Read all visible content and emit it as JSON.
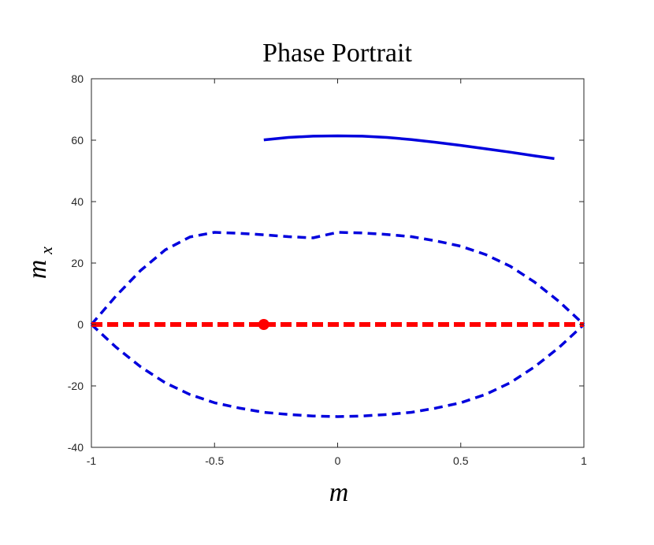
{
  "chart_data": {
    "type": "line",
    "title": "Phase Portrait",
    "xlabel": "m",
    "ylabel": {
      "base": "m",
      "subscript": "x"
    },
    "xlim": [
      -1,
      1
    ],
    "ylim": [
      -40,
      80
    ],
    "x_ticks": [
      -1,
      -0.5,
      0,
      0.5,
      1
    ],
    "x_tick_labels": [
      "-1",
      "-0.5",
      "0",
      "0.5",
      "1"
    ],
    "y_ticks": [
      -40,
      -20,
      0,
      20,
      40,
      60,
      80
    ],
    "y_tick_labels": [
      "-40",
      "-20",
      "0",
      "20",
      "40",
      "60",
      "80"
    ],
    "grid": false,
    "series": [
      {
        "style": "solid",
        "color": "#0000dd",
        "x": [
          -0.3,
          -0.2,
          -0.1,
          0.0,
          0.1,
          0.2,
          0.3,
          0.4,
          0.5,
          0.6,
          0.7,
          0.8,
          0.88
        ],
        "y": [
          60.1,
          60.9,
          61.3,
          61.4,
          61.3,
          60.9,
          60.2,
          59.3,
          58.3,
          57.2,
          56.1,
          54.9,
          54.0
        ]
      },
      {
        "style": "dashed",
        "color": "#0000dd",
        "x": [
          -1.0,
          -0.9,
          -0.8,
          -0.7,
          -0.6,
          -0.5,
          -0.4,
          -0.3,
          -0.2,
          -0.1,
          0.0,
          0.1,
          0.2,
          0.3,
          0.4,
          0.5,
          0.6,
          0.7,
          0.8,
          0.9,
          1.0
        ],
        "y": [
          0,
          9.3,
          17.6,
          24.3,
          28.5,
          30.0,
          29.7,
          29.2,
          28.6,
          28.2,
          30.0,
          29.8,
          29.3,
          28.6,
          27.2,
          25.5,
          22.8,
          19.0,
          13.8,
          7.4,
          0
        ]
      },
      {
        "style": "dashed",
        "color": "#0000dd",
        "x": [
          -1.0,
          -0.9,
          -0.8,
          -0.7,
          -0.6,
          -0.5,
          -0.4,
          -0.3,
          -0.2,
          -0.1,
          0.0,
          0.1,
          0.2,
          0.3,
          0.4,
          0.5,
          0.6,
          0.7,
          0.8,
          0.9,
          1.0
        ],
        "y": [
          0,
          -7.4,
          -13.8,
          -19.0,
          -22.8,
          -25.5,
          -27.2,
          -28.6,
          -29.3,
          -29.8,
          -30.0,
          -29.8,
          -29.3,
          -28.6,
          -27.2,
          -25.5,
          -22.8,
          -19.0,
          -13.8,
          -7.4,
          0
        ]
      },
      {
        "style": "dashed-thick",
        "color": "#ff0000",
        "x": [
          -1.0,
          1.0
        ],
        "y": [
          0,
          0
        ]
      }
    ],
    "markers": [
      {
        "x": -0.3,
        "y": 0,
        "color": "#ff0000"
      }
    ]
  }
}
